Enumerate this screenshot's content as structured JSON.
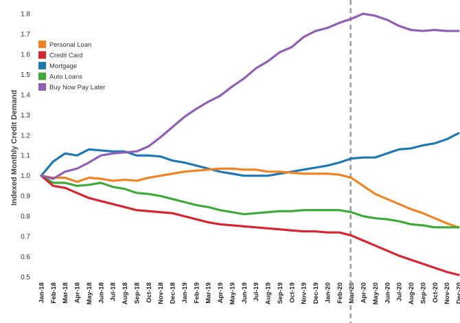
{
  "chart_data": {
    "type": "line",
    "title": "",
    "xlabel": "",
    "ylabel": "Indexed Monthly Credit Demand",
    "ylim": [
      0.45,
      1.85
    ],
    "yticks": [
      "0.5",
      "0.6",
      "0.7",
      "0.8",
      "0.9",
      "1.0",
      "1.1",
      "1.2",
      "1.3",
      "1.4",
      "1.5",
      "1.6",
      "1.7",
      "1.8"
    ],
    "categories": [
      "Jan-18",
      "Feb-18",
      "Mar-18",
      "Apr-18",
      "May-18",
      "Jun-18",
      "Jul-18",
      "Aug-18",
      "Sep-18",
      "Oct-18",
      "Nov-18",
      "Dec-18",
      "Jan-19",
      "Feb-19",
      "Mar-19",
      "Apr-19",
      "May-19",
      "Jun-19",
      "Jul-19",
      "Aug-19",
      "Sep-19",
      "Oct-19",
      "Nov-19",
      "Dec-19",
      "Jan-20",
      "Feb-20",
      "Mar-20",
      "Apr-20",
      "May-20",
      "Jun-20",
      "Jul-20",
      "Aug-20",
      "Sep-20",
      "Oct-20",
      "Nov-20",
      "Dec-20"
    ],
    "reference_line": "Mar-20",
    "legend_position": "top-left",
    "grid": false,
    "series": [
      {
        "name": "Personal Loan",
        "color": "#f28322",
        "values": [
          1.0,
          0.99,
          0.99,
          0.97,
          0.99,
          0.985,
          0.975,
          0.98,
          0.975,
          0.99,
          1.0,
          1.01,
          1.02,
          1.025,
          1.03,
          1.035,
          1.035,
          1.03,
          1.03,
          1.02,
          1.02,
          1.015,
          1.01,
          1.01,
          1.01,
          1.005,
          0.99,
          0.95,
          0.91,
          0.885,
          0.86,
          0.835,
          0.815,
          0.79,
          0.765,
          0.745
        ]
      },
      {
        "name": "Credit Card",
        "color": "#d62430",
        "values": [
          1.0,
          0.95,
          0.94,
          0.915,
          0.89,
          0.875,
          0.86,
          0.845,
          0.83,
          0.825,
          0.82,
          0.815,
          0.8,
          0.785,
          0.77,
          0.76,
          0.755,
          0.75,
          0.745,
          0.74,
          0.735,
          0.73,
          0.725,
          0.725,
          0.72,
          0.72,
          0.705,
          0.68,
          0.655,
          0.63,
          0.605,
          0.585,
          0.565,
          0.545,
          0.525,
          0.51
        ]
      },
      {
        "name": "Mortgage",
        "color": "#1f78b4",
        "values": [
          1.0,
          1.07,
          1.11,
          1.1,
          1.13,
          1.125,
          1.12,
          1.12,
          1.1,
          1.1,
          1.095,
          1.075,
          1.065,
          1.05,
          1.035,
          1.02,
          1.01,
          1.0,
          1.0,
          1.0,
          1.01,
          1.02,
          1.03,
          1.04,
          1.05,
          1.065,
          1.085,
          1.09,
          1.09,
          1.11,
          1.13,
          1.135,
          1.15,
          1.16,
          1.18,
          1.21
        ]
      },
      {
        "name": "Auto Loans",
        "color": "#3faa3a",
        "values": [
          1.0,
          0.965,
          0.965,
          0.95,
          0.955,
          0.965,
          0.945,
          0.935,
          0.915,
          0.91,
          0.9,
          0.885,
          0.87,
          0.855,
          0.845,
          0.83,
          0.82,
          0.81,
          0.815,
          0.82,
          0.825,
          0.825,
          0.83,
          0.83,
          0.83,
          0.83,
          0.82,
          0.8,
          0.79,
          0.785,
          0.775,
          0.76,
          0.755,
          0.745,
          0.745,
          0.745
        ]
      },
      {
        "name": "Buy Now Pay Later",
        "color": "#8f5fb5",
        "values": [
          1.0,
          0.985,
          1.02,
          1.035,
          1.065,
          1.1,
          1.11,
          1.115,
          1.12,
          1.145,
          1.19,
          1.24,
          1.29,
          1.33,
          1.365,
          1.395,
          1.44,
          1.48,
          1.53,
          1.565,
          1.61,
          1.635,
          1.685,
          1.715,
          1.73,
          1.755,
          1.775,
          1.8,
          1.79,
          1.77,
          1.74,
          1.72,
          1.715,
          1.72,
          1.715,
          1.715
        ]
      }
    ]
  }
}
